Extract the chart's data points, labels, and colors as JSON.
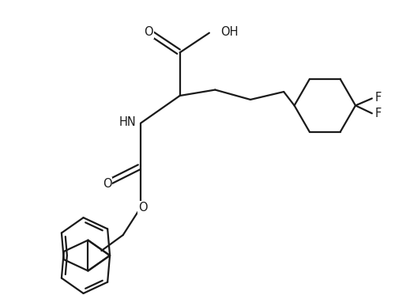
{
  "background_color": "#ffffff",
  "line_color": "#1a1a1a",
  "line_width": 1.6,
  "font_size": 10.5,
  "figsize": [
    5.0,
    3.73
  ],
  "dpi": 100,
  "xlim": [
    0,
    10
  ],
  "ylim": [
    0,
    7.46
  ]
}
